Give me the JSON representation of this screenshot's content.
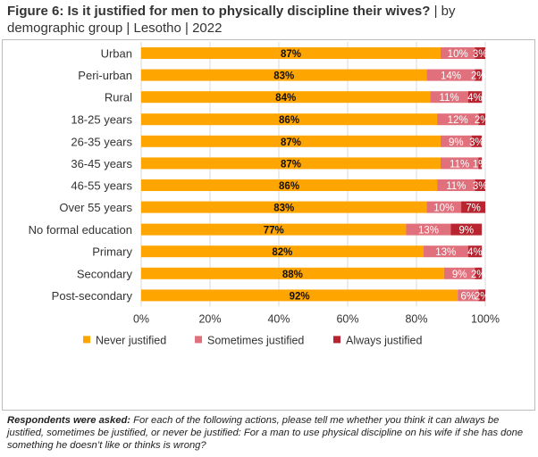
{
  "title": {
    "bold": "Figure 6: Is it justified for men to physically discipline their wives?",
    "rest": " | by demographic group | Lesotho | 2022"
  },
  "footnote": {
    "bold": "Respondents were asked:",
    "text": " For each of the following actions, please tell me whether you think it can always be justified, sometimes be justified, or never be justified: For a man to use physical discipline on his wife if she has done something he doesn’t like or thinks is wrong?"
  },
  "colors": {
    "never": "#FFA500",
    "sometimes": "#E0707C",
    "always": "#B8242F",
    "grid": "#d9d9d9"
  },
  "chart_data": {
    "type": "bar",
    "orientation": "horizontal",
    "stacked": true,
    "xlim": [
      0,
      100
    ],
    "x_ticks": [
      "0%",
      "20%",
      "40%",
      "60%",
      "80%",
      "100%"
    ],
    "grid": true,
    "legend_position": "bottom",
    "categories": [
      "Urban",
      "Peri-urban",
      "Rural",
      "18-25 years",
      "26-35 years",
      "36-45 years",
      "46-55 years",
      "Over 55 years",
      "No formal education",
      "Primary",
      "Secondary",
      "Post-secondary"
    ],
    "groups": [
      [
        0,
        1,
        2
      ],
      [
        3,
        4,
        5,
        6,
        7
      ],
      [
        8,
        9,
        10,
        11
      ]
    ],
    "series": [
      {
        "name": "Never justified",
        "key": "never",
        "values": [
          87,
          83,
          84,
          86,
          87,
          87,
          86,
          83,
          77,
          82,
          88,
          92
        ]
      },
      {
        "name": "Sometimes justified",
        "key": "sometimes",
        "values": [
          10,
          14,
          11,
          12,
          9,
          11,
          11,
          10,
          13,
          13,
          9,
          6
        ]
      },
      {
        "name": "Always justified",
        "key": "always",
        "values": [
          3,
          2,
          4,
          2,
          3,
          1,
          3,
          7,
          9,
          4,
          2,
          2
        ]
      }
    ]
  }
}
